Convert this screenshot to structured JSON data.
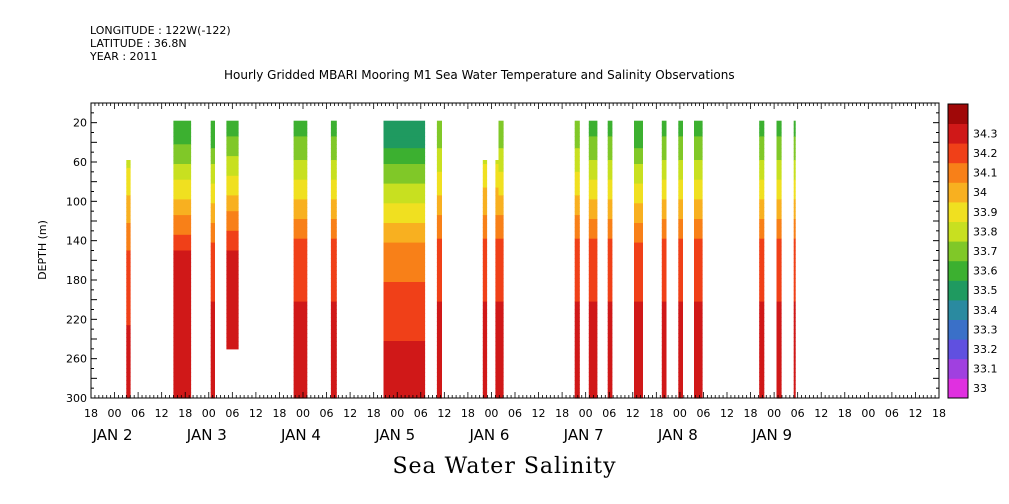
{
  "header": {
    "longitude": "LONGITUDE : 122W(-122)",
    "latitude": "LATITUDE : 36.8N",
    "year": "YEAR : 2011"
  },
  "title": "Hourly Gridded MBARI Mooring M1 Sea Water Temperature and Salinity Observations",
  "bottom_title": "Sea Water Salinity",
  "chart_data": {
    "type": "heatmap",
    "title": "Hourly Gridded MBARI Mooring M1 Sea Water Temperature and Salinity Observations",
    "variable": "Sea Water Salinity",
    "ylabel": "DEPTH (m)",
    "ylim": [
      300,
      0
    ],
    "y_ticks": [
      20,
      60,
      100,
      140,
      180,
      220,
      260,
      300
    ],
    "x_units": "hours since JAN 1 2011 00:00",
    "xlim": [
      18,
      228
    ],
    "x_tick_labels": [
      {
        "h": 18,
        "label": "18"
      },
      {
        "h": 24,
        "label": "00"
      },
      {
        "h": 30,
        "label": "06"
      },
      {
        "h": 36,
        "label": "12"
      },
      {
        "h": 42,
        "label": "18"
      },
      {
        "h": 48,
        "label": "00"
      },
      {
        "h": 54,
        "label": "06"
      },
      {
        "h": 60,
        "label": "12"
      },
      {
        "h": 66,
        "label": "18"
      },
      {
        "h": 72,
        "label": "00"
      },
      {
        "h": 78,
        "label": "06"
      },
      {
        "h": 84,
        "label": "12"
      },
      {
        "h": 90,
        "label": "18"
      },
      {
        "h": 96,
        "label": "00"
      },
      {
        "h": 102,
        "label": "06"
      },
      {
        "h": 108,
        "label": "12"
      },
      {
        "h": 114,
        "label": "18"
      },
      {
        "h": 120,
        "label": "00"
      },
      {
        "h": 126,
        "label": "06"
      },
      {
        "h": 132,
        "label": "12"
      },
      {
        "h": 138,
        "label": "18"
      },
      {
        "h": 144,
        "label": "00"
      },
      {
        "h": 150,
        "label": "06"
      },
      {
        "h": 156,
        "label": "12"
      },
      {
        "h": 162,
        "label": "18"
      },
      {
        "h": 168,
        "label": "00"
      },
      {
        "h": 174,
        "label": "06"
      },
      {
        "h": 180,
        "label": "12"
      },
      {
        "h": 186,
        "label": "18"
      },
      {
        "h": 192,
        "label": "00"
      },
      {
        "h": 198,
        "label": "06"
      },
      {
        "h": 204,
        "label": "12"
      },
      {
        "h": 210,
        "label": "18"
      },
      {
        "h": 216,
        "label": "00"
      },
      {
        "h": 222,
        "label": "06"
      },
      {
        "h": 228,
        "label": "12"
      },
      {
        "h": 234,
        "label": "18"
      }
    ],
    "day_labels": [
      {
        "h": 24,
        "label": "JAN  2"
      },
      {
        "h": 48,
        "label": "JAN  3"
      },
      {
        "h": 72,
        "label": "JAN  4"
      },
      {
        "h": 96,
        "label": "JAN  5"
      },
      {
        "h": 120,
        "label": "JAN  6"
      },
      {
        "h": 144,
        "label": "JAN  7"
      },
      {
        "h": 168,
        "label": "JAN  8"
      },
      {
        "h": 192,
        "label": "JAN  9"
      }
    ],
    "colorbar": {
      "levels": [
        33,
        33.1,
        33.2,
        33.3,
        33.4,
        33.5,
        33.6,
        33.7,
        33.8,
        33.9,
        34,
        34.1,
        34.2,
        34.3
      ],
      "colors": [
        "#e030e0",
        "#a040e0",
        "#6050e0",
        "#3a70c8",
        "#2a8aa0",
        "#1f9a60",
        "#3cb030",
        "#80c828",
        "#c8e020",
        "#f0e020",
        "#f8b020",
        "#f88018",
        "#f04018",
        "#d01818",
        "#a00808"
      ]
    },
    "columns": [
      {
        "x0": 27.0,
        "x1": 28.1,
        "top": 58,
        "deep": 33.65,
        "mid": 34.1,
        "bottom": 34.3
      },
      {
        "x0": 39.0,
        "x1": 43.5,
        "top": 18,
        "deep": 33.5,
        "mid": 34.2,
        "bottom": 34.3
      },
      {
        "x0": 48.5,
        "x1": 49.6,
        "top": 18,
        "deep": 33.5,
        "mid": 34.15,
        "bottom": 34.3
      },
      {
        "x0": 52.5,
        "x1": 55.6,
        "top": 18,
        "deep": 33.55,
        "mid": 34.2,
        "bottom": 34.25,
        "bottom_depth": 250
      },
      {
        "x0": 69.6,
        "x1": 73.1,
        "top": 18,
        "deep": 33.55,
        "mid": 34.15,
        "bottom": 34.3
      },
      {
        "x0": 79.1,
        "x1": 80.6,
        "top": 18,
        "deep": 33.55,
        "mid": 34.15,
        "bottom": 34.3
      },
      {
        "x0": 92.5,
        "x1": 103.1,
        "top": 18,
        "deep": 33.4,
        "mid": 34.05,
        "bottom": 34.3
      },
      {
        "x0": 106.1,
        "x1": 107.4,
        "top": 18,
        "deep": 33.6,
        "mid": 34.15,
        "bottom": 34.3
      },
      {
        "x0": 117.8,
        "x1": 118.9,
        "top": 58,
        "deep": 33.65,
        "mid": 34.15,
        "bottom": 34.3
      },
      {
        "x0": 121.0,
        "x1": 121.8,
        "top": 58,
        "deep": 33.65,
        "mid": 34.15,
        "bottom": 34.3
      },
      {
        "x0": 121.8,
        "x1": 123.1,
        "top": 18,
        "deep": 33.6,
        "mid": 34.15,
        "bottom": 34.3
      },
      {
        "x0": 141.2,
        "x1": 142.5,
        "top": 18,
        "deep": 33.6,
        "mid": 34.15,
        "bottom": 34.3
      },
      {
        "x0": 144.8,
        "x1": 147.0,
        "top": 18,
        "deep": 33.55,
        "mid": 34.15,
        "bottom": 34.3
      },
      {
        "x0": 149.6,
        "x1": 150.8,
        "top": 18,
        "deep": 33.55,
        "mid": 34.15,
        "bottom": 34.3
      },
      {
        "x0": 156.3,
        "x1": 158.6,
        "top": 18,
        "deep": 33.5,
        "mid": 34.15,
        "bottom": 34.3
      },
      {
        "x0": 163.4,
        "x1": 164.6,
        "top": 18,
        "deep": 33.55,
        "mid": 34.15,
        "bottom": 34.3
      },
      {
        "x0": 167.6,
        "x1": 168.8,
        "top": 18,
        "deep": 33.55,
        "mid": 34.15,
        "bottom": 34.3
      },
      {
        "x0": 171.6,
        "x1": 173.8,
        "top": 18,
        "deep": 33.55,
        "mid": 34.15,
        "bottom": 34.3
      },
      {
        "x0": 188.2,
        "x1": 189.5,
        "top": 18,
        "deep": 33.55,
        "mid": 34.15,
        "bottom": 34.3
      },
      {
        "x0": 192.6,
        "x1": 193.9,
        "top": 18,
        "deep": 33.55,
        "mid": 34.15,
        "bottom": 34.3
      },
      {
        "x0": 197.0,
        "x1": 197.5,
        "top": 18,
        "deep": 33.55,
        "mid": 34.15,
        "bottom": 34.3
      }
    ]
  }
}
